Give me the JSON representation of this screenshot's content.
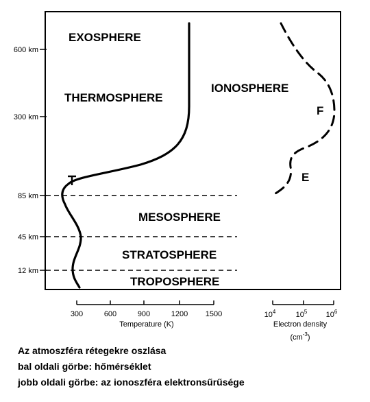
{
  "altitude_axis": {
    "ticks": [
      {
        "label": "600 km",
        "value": 600
      },
      {
        "label": "300 km",
        "value": 300
      },
      {
        "label": "85 km",
        "value": 85
      },
      {
        "label": "45 km",
        "value": 45
      },
      {
        "label": "12 km",
        "value": 12
      }
    ]
  },
  "regions": {
    "exosphere": "EXOSPHERE",
    "thermosphere": "THERMOSPHERE",
    "ionosphere": "IONOSPHERE",
    "mesosphere": "MESOSPHERE",
    "stratosphere": "STRATOSPHERE",
    "troposphere": "TROPOSPHERE"
  },
  "temperature_axis": {
    "title": "Temperature (K)",
    "ticks": [
      "300",
      "600",
      "900",
      "1200",
      "1500"
    ]
  },
  "density_axis": {
    "title_line1": "Electron density",
    "title_line2": "(cm",
    "title_exp": "-3",
    "title_close": ")",
    "tick_base": "10",
    "tick_exponents": [
      "4",
      "5",
      "6"
    ]
  },
  "layer_labels": {
    "f": "F",
    "e": "E",
    "t": "T"
  },
  "caption": {
    "line1": "Az atmoszféra rétegekre oszlása",
    "line2": "bal oldali görbe: hőmérséklet",
    "line3": "jobb oldali görbe: az ionoszféra elektronsűrűsége"
  }
}
